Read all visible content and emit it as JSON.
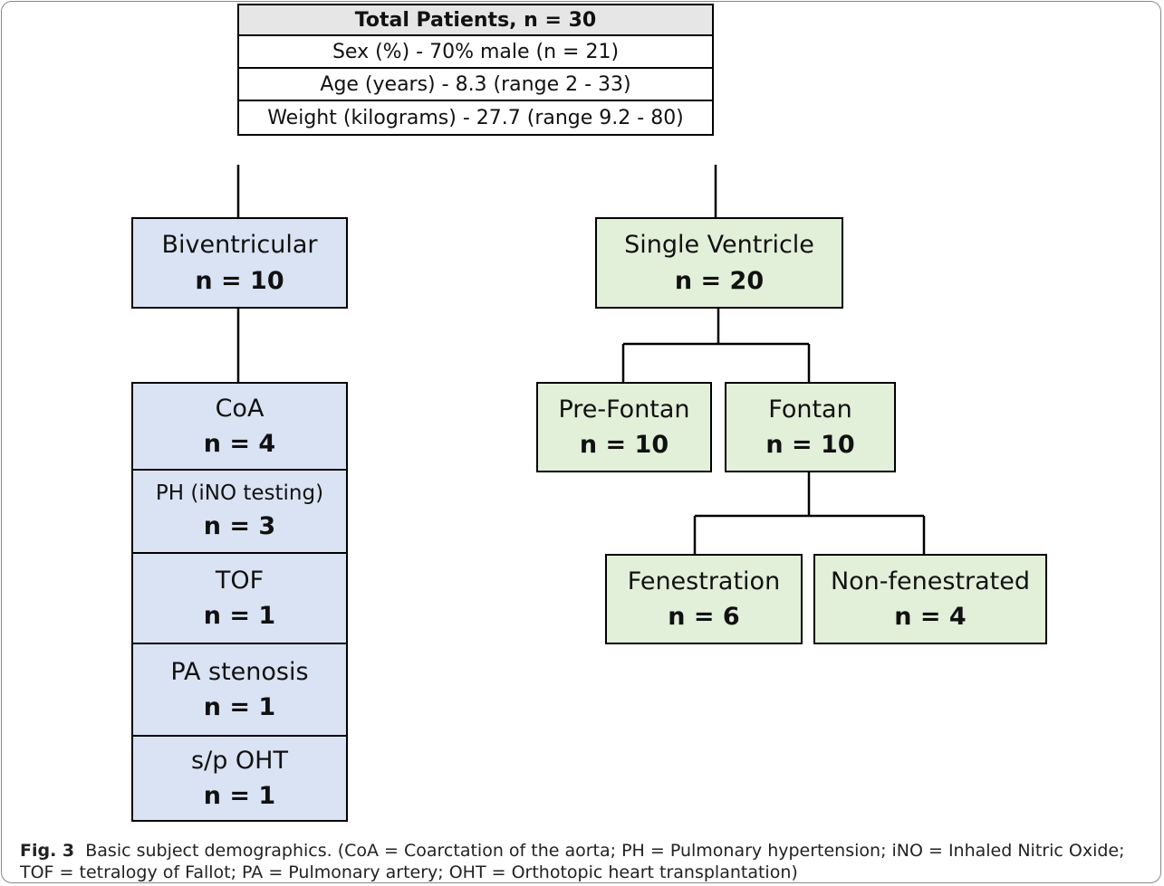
{
  "header": {
    "title": "Total Patients, n = 30",
    "rows": [
      "Sex (%) - 70% male (n = 21)",
      "Age (years) - 8.3 (range 2 - 33)",
      "Weight (kilograms) - 27.7 (range  9.2 - 80)"
    ]
  },
  "nodes": [
    {
      "label": "Biventricular",
      "count": "n = 10"
    },
    {
      "label": "Single Ventricle",
      "count": "n = 20"
    },
    {
      "label": "CoA",
      "count": "n = 4"
    },
    {
      "label": "PH (iNO testing)",
      "count": "n = 3"
    },
    {
      "label": "TOF",
      "count": "n = 1"
    },
    {
      "label": "PA stenosis",
      "count": "n = 1"
    },
    {
      "label": "s/p OHT",
      "count": "n = 1"
    },
    {
      "label": "Pre-Fontan",
      "count": "n = 10"
    },
    {
      "label": "Fontan",
      "count": "n = 10"
    },
    {
      "label": "Fenestration",
      "count": "n = 6"
    },
    {
      "label": "Non-fenestrated",
      "count": "n = 4"
    }
  ],
  "caption": {
    "label": "Fig. 3",
    "text": "Basic subject demographics. (CoA = Coarctation of the aorta; PH = Pulmonary hypertension; iNO = Inhaled Nitric Oxide; TOF = tetralogy of Fallot; PA = Pulmonary artery; OHT = Orthotopic heart transplantation)"
  }
}
